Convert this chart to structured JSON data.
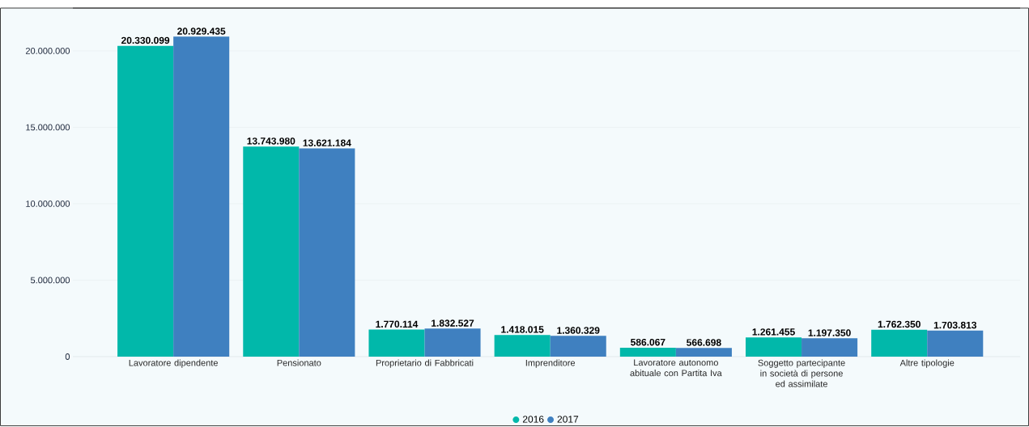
{
  "chart_data": {
    "type": "bar",
    "categories": [
      "Lavoratore dipendente",
      "Pensionato",
      "Proprietario di Fabbricati",
      "Imprenditore",
      "Lavoratore autonomo abituale con Partita Iva",
      "Soggetto partecipante in società di persone ed assimilate",
      "Altre tipologie"
    ],
    "series": [
      {
        "name": "2016",
        "color": "#01b8aa",
        "values": [
          20330099,
          13743980,
          1770114,
          1418015,
          586067,
          1261455,
          1762350
        ],
        "value_labels": [
          "20.330.099",
          "13.743.980",
          "1.770.114",
          "1.418.015",
          "586.067",
          "1.261.455",
          "1.762.350"
        ]
      },
      {
        "name": "2017",
        "color": "#3f80c0",
        "values": [
          20929435,
          13621184,
          1832527,
          1360329,
          566698,
          1197350,
          1703813
        ],
        "value_labels": [
          "20.929.435",
          "13.621.184",
          "1.832.527",
          "1.360.329",
          "566.698",
          "1.197.350",
          "1.703.813"
        ]
      }
    ],
    "ylim": [
      0,
      22800000
    ],
    "yticks": [
      {
        "value": 0,
        "label": "0"
      },
      {
        "value": 5000000,
        "label": "5.000.000"
      },
      {
        "value": 10000000,
        "label": "10.000.000"
      },
      {
        "value": 15000000,
        "label": "15.000.000"
      },
      {
        "value": 20000000,
        "label": "20.000.000"
      }
    ],
    "grid": "y",
    "legend": "bottom"
  }
}
